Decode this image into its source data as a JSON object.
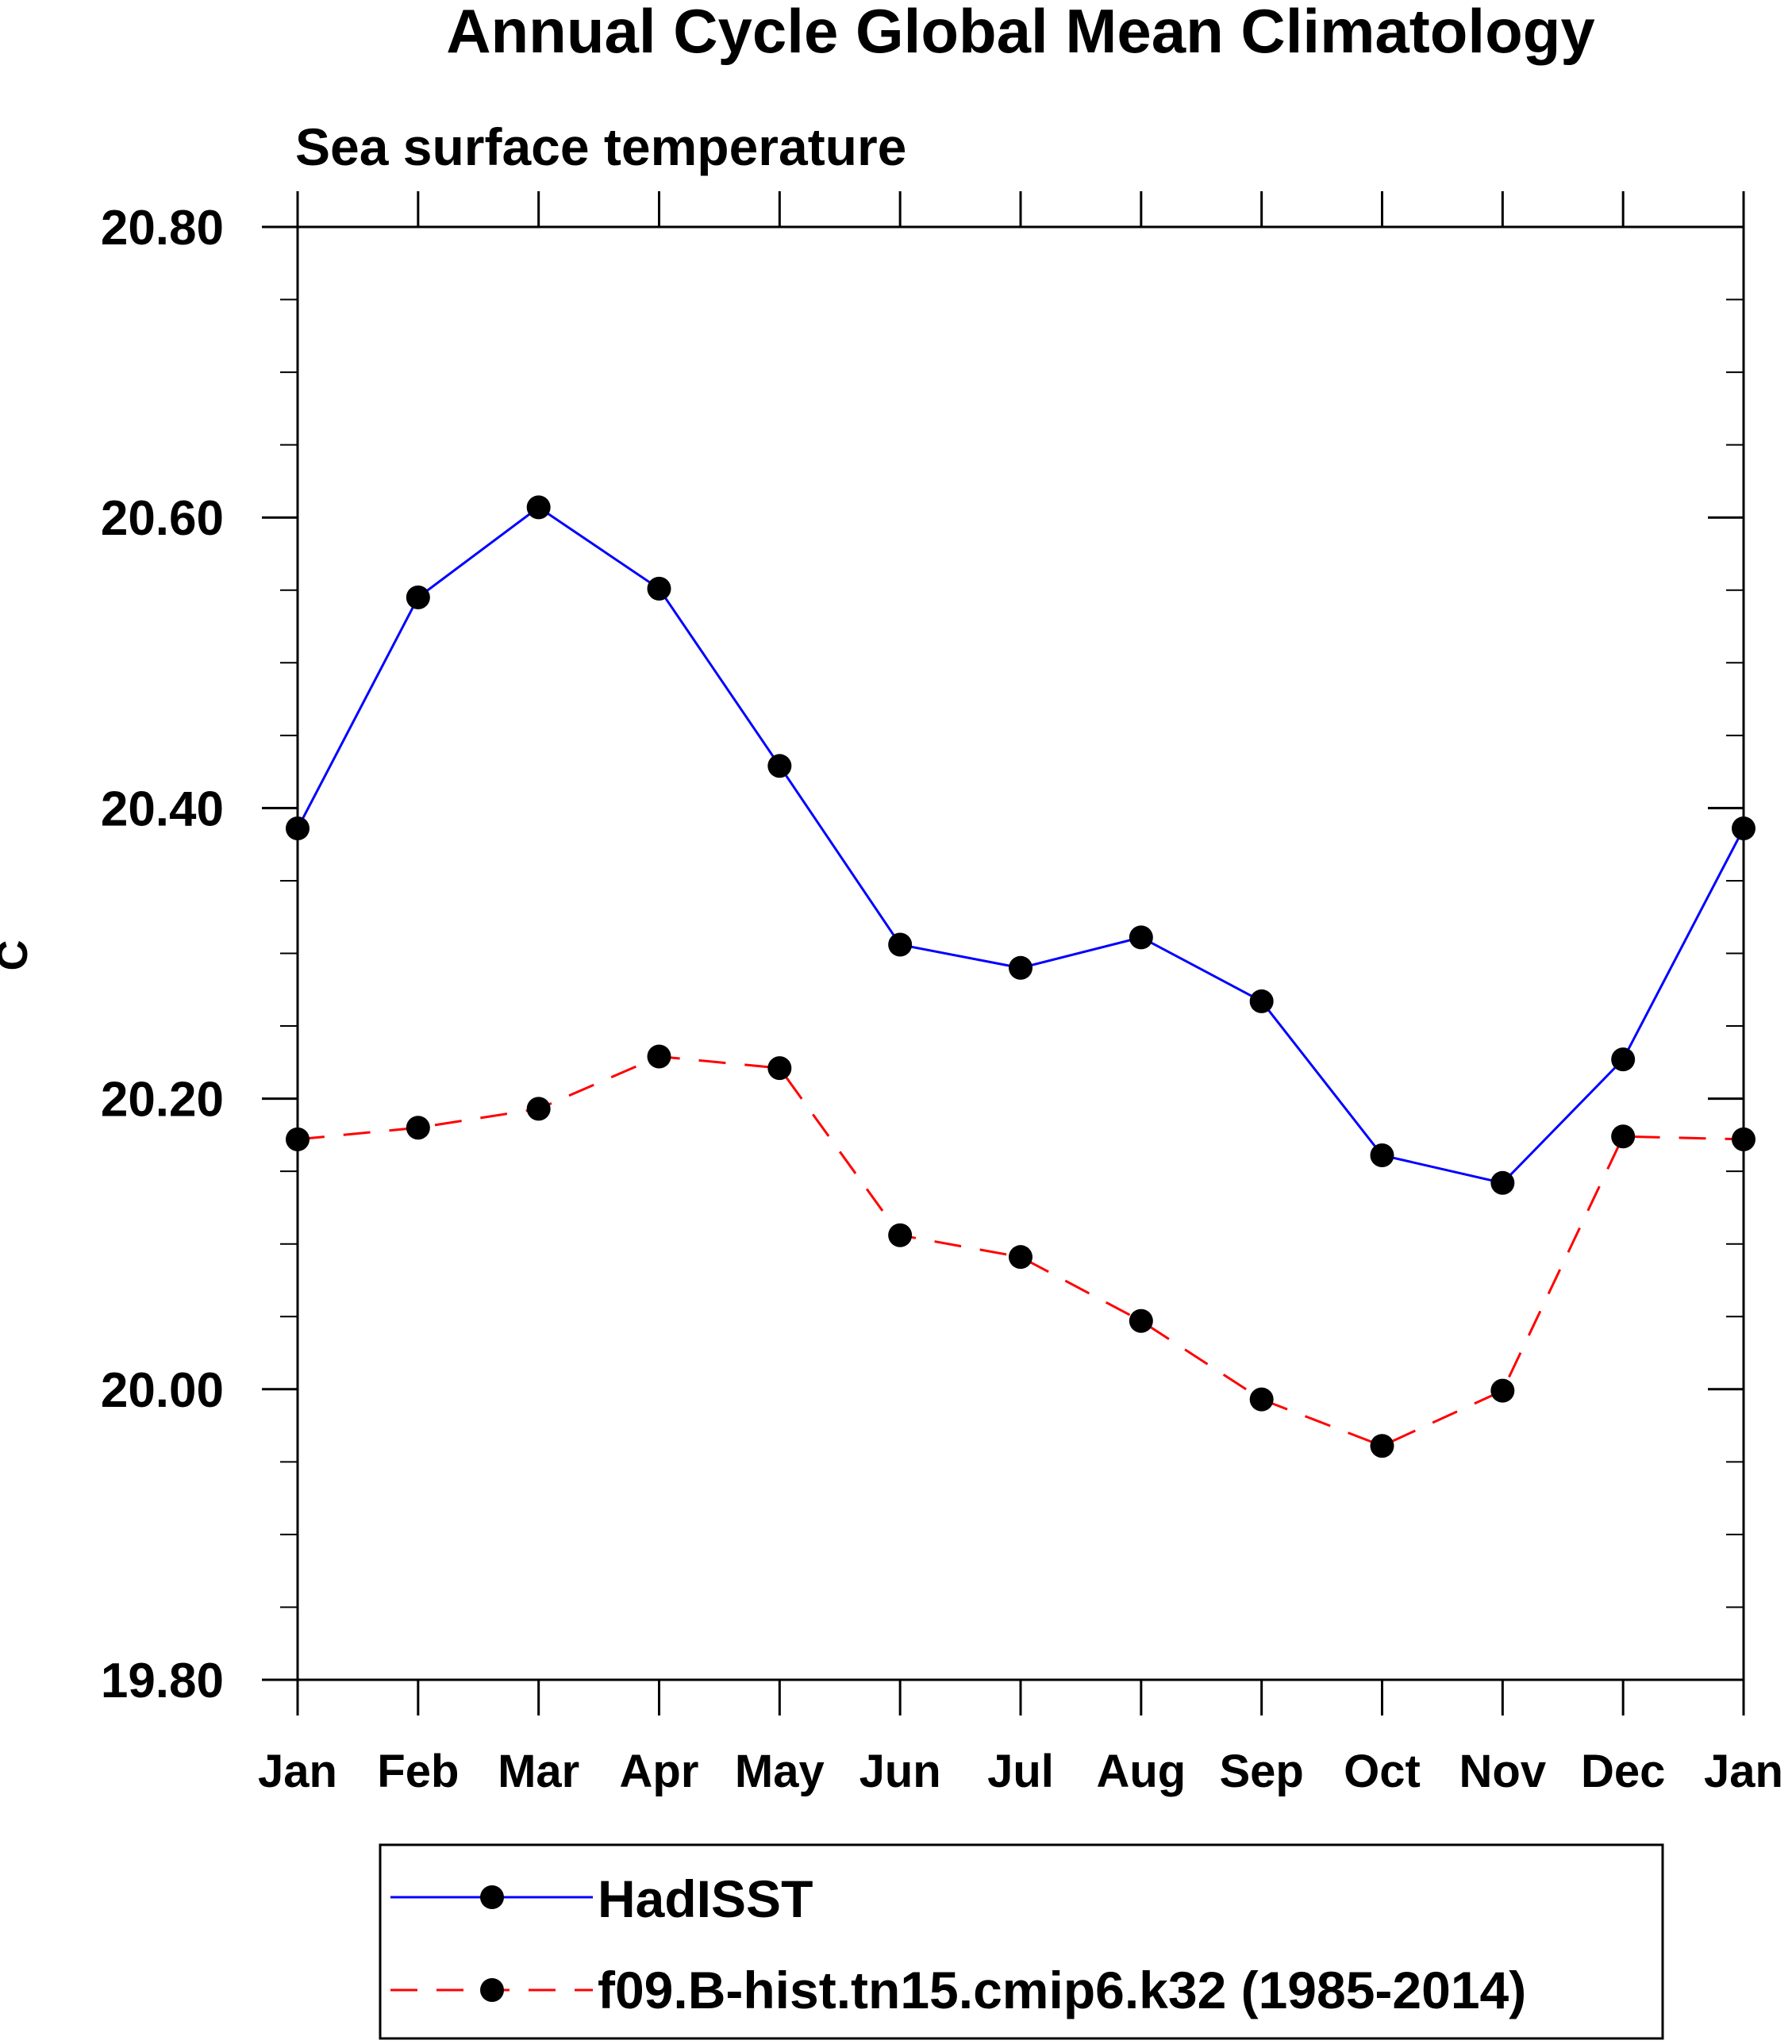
{
  "chart_data": {
    "type": "line",
    "title": "Annual Cycle Global Mean Climatology",
    "subtitle": "Sea surface temperature",
    "xlabel": "",
    "ylabel": "C",
    "categories": [
      "Jan",
      "Feb",
      "Mar",
      "Apr",
      "May",
      "Jun",
      "Jul",
      "Aug",
      "Sep",
      "Oct",
      "Nov",
      "Dec",
      "Jan"
    ],
    "ylim": [
      19.8,
      20.8
    ],
    "yticks": [
      "20.80",
      "20.60",
      "20.40",
      "20.20",
      "20.00",
      "19.80"
    ],
    "ytick_values": [
      20.8,
      20.6,
      20.4,
      20.2,
      20.0,
      19.8
    ],
    "grid": false,
    "legend_position": "bottom",
    "series": [
      {
        "name": "HadISST",
        "color": "#0000ff",
        "style": "solid",
        "marker": "filled-circle",
        "values": [
          20.386,
          20.545,
          20.607,
          20.551,
          20.429,
          20.306,
          20.29,
          20.311,
          20.267,
          20.161,
          20.142,
          20.227,
          20.386
        ]
      },
      {
        "name": "f09.B-hist.tn15.cmip6.k32 (1985-2014)",
        "color": "#ff0000",
        "style": "dashed",
        "marker": "filled-circle",
        "values": [
          20.172,
          20.18,
          20.193,
          20.229,
          20.221,
          20.106,
          20.091,
          20.047,
          19.993,
          19.961,
          19.999,
          20.174,
          20.172
        ]
      }
    ]
  }
}
